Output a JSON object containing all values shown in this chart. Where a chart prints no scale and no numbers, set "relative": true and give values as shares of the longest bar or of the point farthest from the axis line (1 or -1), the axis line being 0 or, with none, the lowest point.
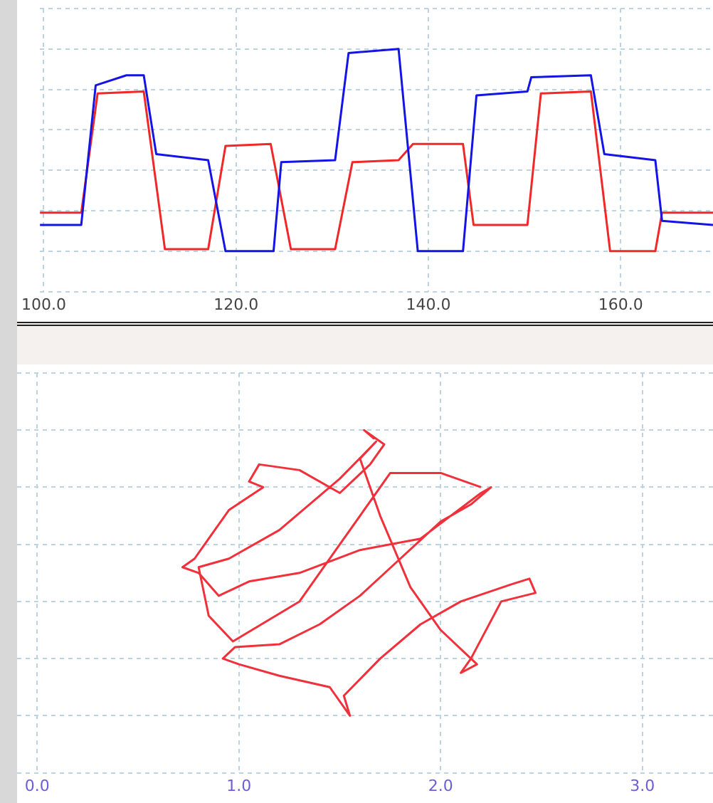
{
  "chart_data": [
    {
      "type": "line",
      "relative": true,
      "grid": true,
      "marker": "none",
      "xlim": [
        99.6,
        169.6
      ],
      "xticks": [
        {
          "value": 100,
          "label": "100.0"
        },
        {
          "value": 120,
          "label": "120.0"
        },
        {
          "value": 140,
          "label": "140.0"
        },
        {
          "value": 160,
          "label": "160.0"
        }
      ],
      "series": [
        {
          "color": "#1414e6",
          "x": [
            99.6,
            103.9,
            105.4,
            108.6,
            110.4,
            111.7,
            117.1,
            118.9,
            123.9,
            124.7,
            130.3,
            131.7,
            136.9,
            138.9,
            143.6,
            145.0,
            150.3,
            150.7,
            156.9,
            158.3,
            163.6,
            164.3,
            169.6
          ],
          "values": [
            0.13,
            0.13,
            0.82,
            0.87,
            0.87,
            0.48,
            0.45,
            0,
            0,
            0.44,
            0.45,
            0.98,
            1,
            0,
            0,
            0.77,
            0.79,
            0.86,
            0.87,
            0.48,
            0.45,
            0.15,
            0.13
          ]
        },
        {
          "color": "#f02828",
          "x": [
            99.6,
            103.9,
            105.6,
            110.4,
            112.6,
            117.1,
            118.9,
            123.6,
            125.7,
            130.3,
            132.1,
            136.9,
            138.4,
            143.6,
            144.7,
            150.3,
            151.7,
            156.9,
            158.9,
            163.6,
            164.3,
            169.6
          ],
          "values": [
            0.19,
            0.19,
            0.78,
            0.79,
            0.01,
            0.01,
            0.52,
            0.53,
            0.01,
            0.01,
            0.44,
            0.45,
            0.53,
            0.53,
            0.13,
            0.13,
            0.78,
            0.79,
            0,
            0,
            0.19,
            0.19
          ]
        }
      ]
    },
    {
      "type": "line",
      "relative": true,
      "grid": true,
      "marker": "none",
      "xlim": [
        -0.1,
        3.35
      ],
      "xticks": [
        {
          "value": 0,
          "label": "0.0"
        },
        {
          "value": 1,
          "label": "1.0"
        },
        {
          "value": 2,
          "label": "2.0"
        },
        {
          "value": 3,
          "label": "3.0"
        }
      ],
      "series": [
        {
          "color": "#f0303a",
          "x": [
            1.67,
            1.62,
            1.72,
            1.65,
            1.5,
            1.3,
            1.1,
            1.05,
            1.12,
            0.95,
            0.85,
            0.78,
            0.72,
            0.8,
            0.9,
            1.05,
            1.3,
            1.6,
            1.9,
            2.2,
            2.25,
            2.15,
            2.0,
            1.8,
            1.6,
            1.4,
            1.2,
            0.98,
            0.92,
            1.0,
            1.2,
            1.45,
            1.55,
            1.52,
            1.7,
            1.9,
            2.1,
            2.35,
            2.44,
            2.47,
            2.3,
            2.15,
            2.1,
            2.18,
            2.0,
            1.85,
            1.7,
            1.6,
            1.68,
            1.5,
            1.2,
            0.95,
            0.8,
            0.85,
            0.97,
            1.3,
            1.5,
            1.75,
            2.0,
            2.2
          ],
          "values": [
            0.97,
            1.0,
            0.95,
            0.88,
            0.78,
            0.86,
            0.88,
            0.82,
            0.8,
            0.72,
            0.62,
            0.55,
            0.52,
            0.5,
            0.42,
            0.47,
            0.5,
            0.58,
            0.62,
            0.78,
            0.8,
            0.74,
            0.68,
            0.55,
            0.42,
            0.32,
            0.25,
            0.24,
            0.2,
            0.18,
            0.14,
            0.1,
            0,
            0.07,
            0.2,
            0.32,
            0.4,
            0.46,
            0.48,
            0.43,
            0.4,
            0.2,
            0.15,
            0.18,
            0.3,
            0.45,
            0.7,
            0.9,
            0.96,
            0.83,
            0.65,
            0.55,
            0.52,
            0.35,
            0.26,
            0.4,
            0.6,
            0.85,
            0.85,
            0.8
          ]
        }
      ]
    }
  ]
}
